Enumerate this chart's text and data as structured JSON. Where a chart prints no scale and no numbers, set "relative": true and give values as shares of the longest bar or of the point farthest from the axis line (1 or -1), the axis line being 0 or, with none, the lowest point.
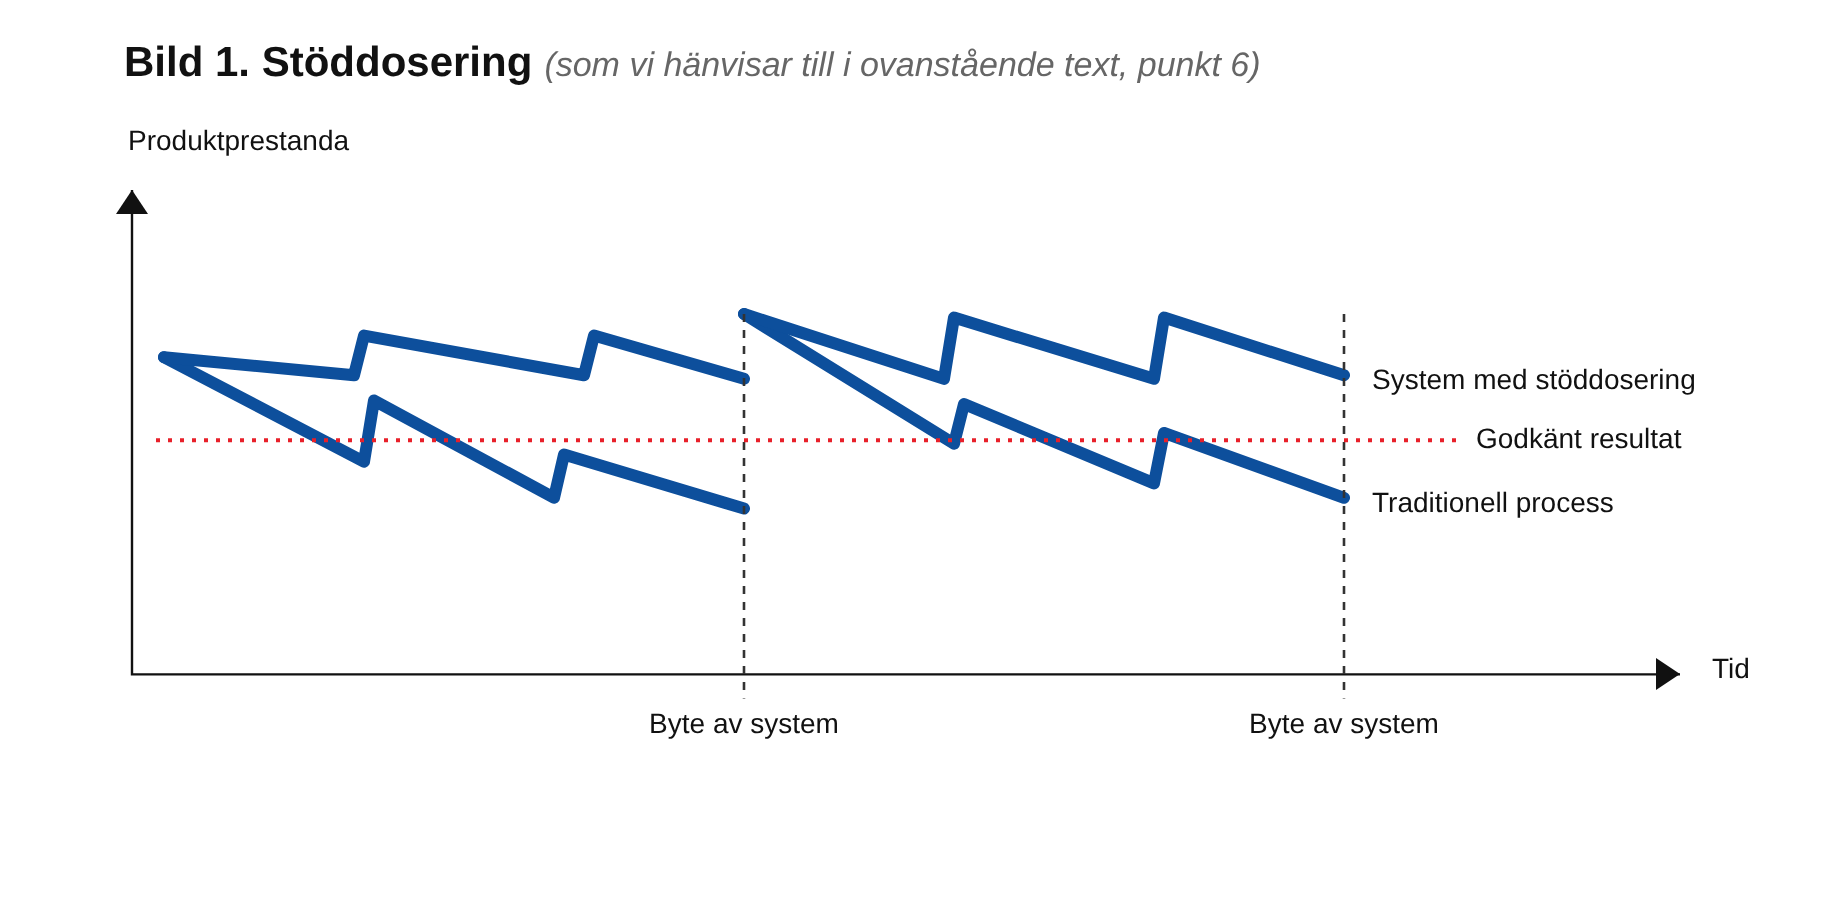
{
  "chart_data": {
    "type": "line",
    "title": "Bild 1. Stöddosering",
    "subtitle": "(som vi hänvisar till i ovanstående text, punkt 6)",
    "annotations": [
      "Produktprestanda",
      "Tid"
    ],
    "relative": true,
    "tick_labels": "x",
    "grid": "x",
    "legend": false,
    "marker": "none",
    "line_style": "solid",
    "categories": [
      null,
      null,
      null,
      null,
      null,
      null,
      null,
      null,
      null,
      null,
      null,
      null,
      null,
      null,
      null,
      null,
      null,
      null,
      null,
      null,
      null,
      null,
      null,
      null,
      null,
      null,
      null,
      null,
      null,
      null,
      null,
      null,
      null,
      null,
      null,
      null,
      null,
      null,
      null,
      null,
      null,
      null,
      null,
      null,
      null,
      null,
      null,
      null,
      null,
      null,
      null,
      null,
      null,
      null,
      null,
      null,
      null,
      null,
      null,
      null,
      "Byte av system",
      null,
      null,
      null,
      null,
      null,
      null,
      null,
      null,
      null,
      null,
      null,
      null,
      null,
      null,
      null,
      null,
      null,
      null,
      null,
      null,
      null,
      null,
      null,
      null,
      null,
      null,
      null,
      null,
      null,
      null,
      null,
      null,
      null,
      null,
      null,
      null,
      null,
      null,
      null,
      null,
      null,
      null,
      null,
      null,
      null,
      null,
      null,
      null,
      null,
      null,
      null,
      null,
      null,
      null,
      null,
      null,
      null,
      null,
      null,
      "Byte av system"
    ],
    "series": [
      {
        "color": "#0d4f9c",
        "values": [
          null,
          null,
          0.88,
          null,
          null,
          null,
          null,
          null,
          null,
          null,
          null,
          null,
          null,
          null,
          null,
          null,
          null,
          null,
          null,
          null,
          null,
          0.83,
          0.94,
          null,
          null,
          null,
          null,
          null,
          null,
          null,
          null,
          null,
          null,
          null,
          null,
          null,
          null,
          null,
          null,
          null,
          null,
          null,
          null,
          null,
          0.83,
          0.94,
          null,
          null,
          null,
          null,
          null,
          null,
          null,
          null,
          null,
          null,
          null,
          null,
          null,
          null,
          0.82,
          null,
          null,
          null,
          null,
          null,
          null,
          null,
          null,
          null,
          null,
          null,
          null,
          null,
          null,
          null,
          null,
          null,
          null,
          null,
          null,
          null,
          null,
          null,
          null,
          null,
          null,
          null,
          null,
          null,
          null,
          null,
          null,
          null,
          null,
          null,
          null,
          null,
          null,
          null,
          null,
          null,
          null,
          null,
          null,
          null,
          null,
          null,
          null,
          null,
          null,
          null,
          null,
          null,
          null,
          null,
          null,
          null,
          null,
          null,
          null
        ]
      },
      {
        "name": "System med stöddosering",
        "color": "#0d4f9c",
        "values": [
          null,
          null,
          null,
          null,
          null,
          null,
          null,
          null,
          null,
          null,
          null,
          null,
          null,
          null,
          null,
          null,
          null,
          null,
          null,
          null,
          null,
          null,
          null,
          null,
          null,
          null,
          null,
          null,
          null,
          null,
          null,
          null,
          null,
          null,
          null,
          null,
          null,
          null,
          null,
          null,
          null,
          null,
          null,
          null,
          null,
          null,
          null,
          null,
          null,
          null,
          null,
          null,
          null,
          null,
          null,
          null,
          null,
          null,
          null,
          null,
          1,
          null,
          null,
          null,
          null,
          null,
          null,
          null,
          null,
          null,
          null,
          null,
          null,
          null,
          null,
          null,
          null,
          null,
          null,
          null,
          0.82,
          0.99,
          null,
          null,
          null,
          null,
          null,
          null,
          null,
          null,
          null,
          null,
          null,
          null,
          null,
          null,
          null,
          null,
          null,
          null,
          null,
          0.82,
          0.99,
          null,
          null,
          null,
          null,
          null,
          null,
          null,
          null,
          null,
          null,
          null,
          null,
          null,
          null,
          null,
          null,
          null,
          0.83
        ]
      },
      {
        "color": "#0d4f9c",
        "values": [
          null,
          null,
          0.88,
          null,
          null,
          null,
          null,
          null,
          null,
          null,
          null,
          null,
          null,
          null,
          null,
          null,
          null,
          null,
          null,
          null,
          null,
          null,
          0.59,
          0.76,
          null,
          null,
          null,
          null,
          null,
          null,
          null,
          null,
          null,
          null,
          null,
          null,
          null,
          null,
          null,
          null,
          null,
          0.49,
          0.61,
          null,
          null,
          null,
          null,
          null,
          null,
          null,
          null,
          null,
          null,
          null,
          null,
          null,
          null,
          null,
          null,
          null,
          0.46,
          null,
          null,
          null,
          null,
          null,
          null,
          null,
          null,
          null,
          null,
          null,
          null,
          null,
          null,
          null,
          null,
          null,
          null,
          null,
          null,
          null,
          null,
          null,
          null,
          null,
          null,
          null,
          null,
          null,
          null,
          null,
          null,
          null,
          null,
          null,
          null,
          null,
          null,
          null,
          null,
          null,
          null,
          null,
          null,
          null,
          null,
          null,
          null,
          null,
          null,
          null,
          null,
          null,
          null,
          null,
          null,
          null,
          null,
          null,
          null
        ]
      },
      {
        "name": "Traditionell process",
        "color": "#0d4f9c",
        "values": [
          null,
          null,
          null,
          null,
          null,
          null,
          null,
          null,
          null,
          null,
          null,
          null,
          null,
          null,
          null,
          null,
          null,
          null,
          null,
          null,
          null,
          null,
          null,
          null,
          null,
          null,
          null,
          null,
          null,
          null,
          null,
          null,
          null,
          null,
          null,
          null,
          null,
          null,
          null,
          null,
          null,
          null,
          null,
          null,
          null,
          null,
          null,
          null,
          null,
          null,
          null,
          null,
          null,
          null,
          null,
          null,
          null,
          null,
          null,
          null,
          1,
          null,
          null,
          null,
          null,
          null,
          null,
          null,
          null,
          null,
          null,
          null,
          null,
          null,
          null,
          null,
          null,
          null,
          null,
          null,
          null,
          0.64,
          0.75,
          null,
          null,
          null,
          null,
          null,
          null,
          null,
          null,
          null,
          null,
          null,
          null,
          null,
          null,
          null,
          null,
          null,
          null,
          0.53,
          0.67,
          null,
          null,
          null,
          null,
          null,
          null,
          null,
          null,
          null,
          null,
          null,
          null,
          null,
          null,
          null,
          null,
          null,
          0.49
        ]
      }
    ],
    "ref_lines": [
      {
        "axis": "y",
        "value": 0.65,
        "label": "Godkänt resultat",
        "color": "#e8202a",
        "line_style": "dotted"
      }
    ]
  }
}
